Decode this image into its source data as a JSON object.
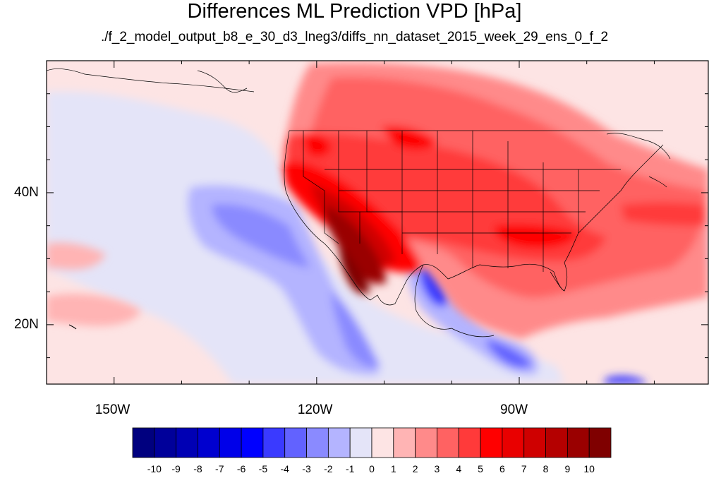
{
  "title": "Differences ML Prediction VPD [hPa]",
  "subtitle": "./f_2_model_output_b8_e_30_d3_lneg3/diffs_nn_dataset_2015_week_29_ens_0_f_2",
  "map": {
    "lon_range": [
      -160,
      -62
    ],
    "lat_range": [
      11,
      60
    ],
    "lat_ticks": [
      {
        "value": 40,
        "label": "40N"
      },
      {
        "value": 20,
        "label": "20N"
      }
    ],
    "lon_ticks": [
      {
        "value": -150,
        "label": "150W"
      },
      {
        "value": -120,
        "label": "120W"
      },
      {
        "value": -90,
        "label": "90W"
      }
    ]
  },
  "colorbar": {
    "levels": [
      "-10",
      "-9",
      "-8",
      "-7",
      "-6",
      "-5",
      "-4",
      "-3",
      "-2",
      "-1",
      "0",
      "1",
      "2",
      "3",
      "4",
      "5",
      "6",
      "7",
      "8",
      "9",
      "10"
    ],
    "colors": [
      "#00007f",
      "#00009a",
      "#0000b4",
      "#0000cf",
      "#0000e9",
      "#0000ff",
      "#3a3aff",
      "#6262ff",
      "#8a8aff",
      "#b4b4ff",
      "#e4e4f8",
      "#fde4e4",
      "#ffb4b4",
      "#ff8a8a",
      "#ff6262",
      "#ff3a3a",
      "#ff0000",
      "#e90000",
      "#cf0000",
      "#b40000",
      "#9a0000",
      "#7f0000"
    ]
  }
}
